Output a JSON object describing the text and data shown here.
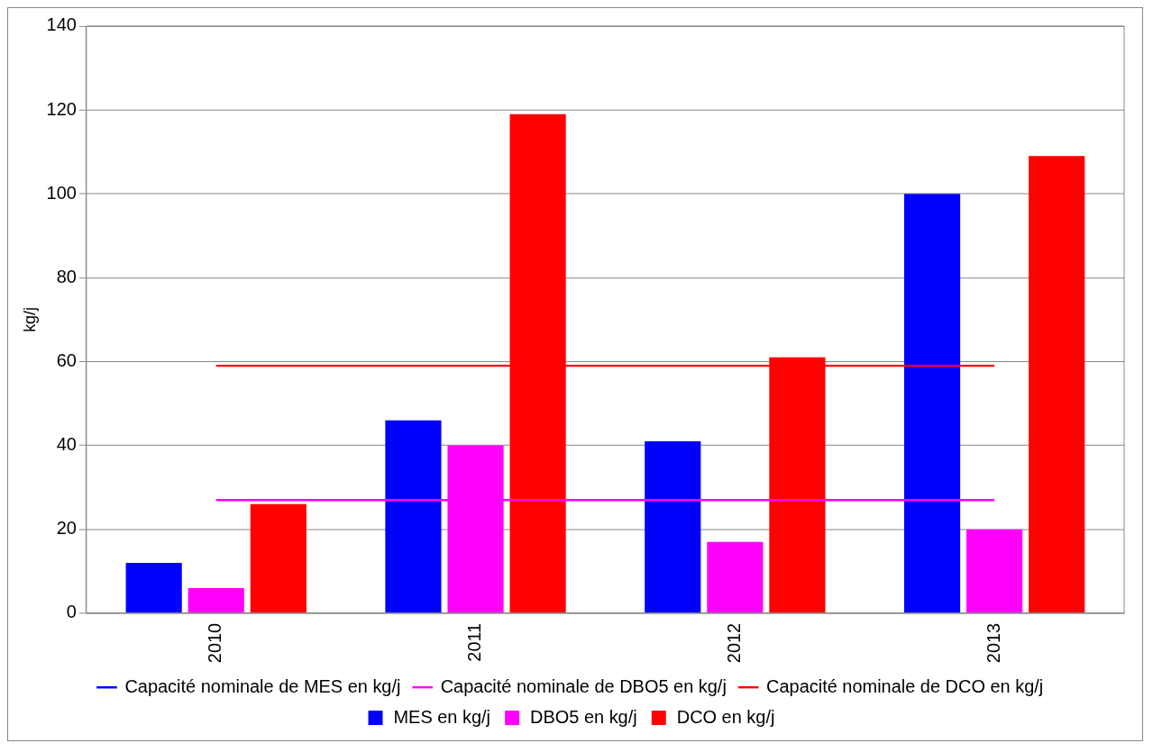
{
  "chart_data": {
    "type": "bar",
    "ylabel": "kg/j",
    "categories": [
      "2010",
      "2011",
      "2012",
      "2013"
    ],
    "series": [
      {
        "name": "MES en kg/j",
        "color": "#0000ff",
        "values": [
          12,
          46,
          41,
          100
        ]
      },
      {
        "name": "DBO5 en kg/j",
        "color": "#ff00ff",
        "values": [
          6,
          40,
          17,
          20
        ]
      },
      {
        "name": "DCO en kg/j",
        "color": "#ff0000",
        "values": [
          26,
          119,
          61,
          109
        ]
      },
      {
        "name": "Capacité nominale de MES en kg/j",
        "type": "line",
        "color": "#0000ff",
        "values": [
          null,
          null,
          null,
          null
        ]
      },
      {
        "name": "Capacité nominale de DBO5 en kg/j",
        "type": "line",
        "color": "#ff00ff",
        "values": [
          27,
          27,
          27,
          27
        ]
      },
      {
        "name": "Capacité nominale de DCO en kg/j",
        "type": "line",
        "color": "#ff0000",
        "values": [
          59,
          59,
          59,
          59
        ]
      }
    ],
    "ylim": [
      0,
      140
    ],
    "yticks": [
      0,
      20,
      40,
      60,
      80,
      100,
      120,
      140
    ],
    "grid": "y",
    "legend": "bottom",
    "marker": "none",
    "line_style": "solid"
  }
}
